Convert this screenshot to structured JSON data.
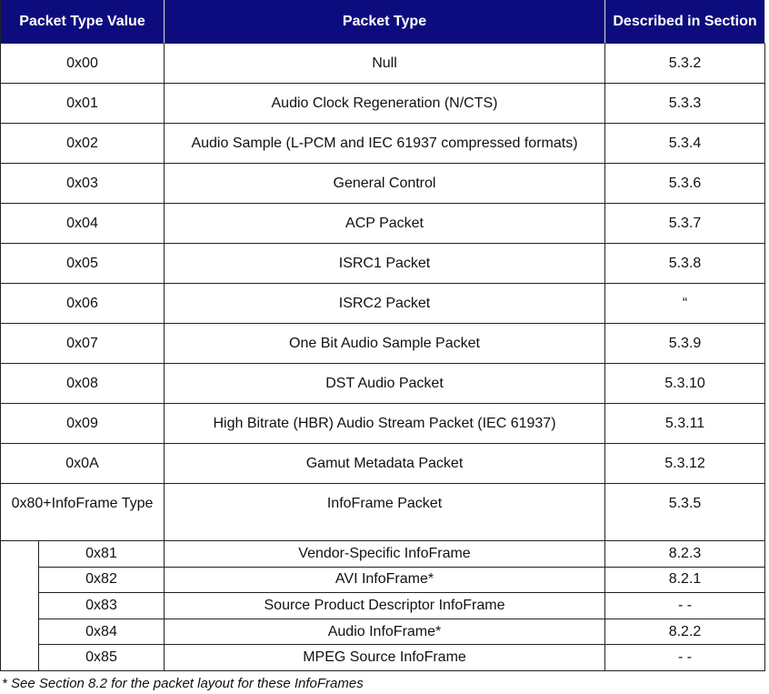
{
  "header": [
    "Packet Type Value",
    "Packet Type",
    "Described in Section"
  ],
  "rows": [
    [
      "0x00",
      "Null",
      "5.3.2"
    ],
    [
      "0x01",
      "Audio Clock Regeneration (N/CTS)",
      "5.3.3"
    ],
    [
      "0x02",
      "Audio Sample (L-PCM and IEC 61937 compressed formats)",
      "5.3.4"
    ],
    [
      "0x03",
      "General Control",
      "5.3.6"
    ],
    [
      "0x04",
      "ACP Packet",
      "5.3.7"
    ],
    [
      "0x05",
      "ISRC1 Packet",
      "5.3.8"
    ],
    [
      "0x06",
      "ISRC2 Packet",
      "“"
    ],
    [
      "0x07",
      "One Bit Audio Sample Packet",
      "5.3.9"
    ],
    [
      "0x08",
      "DST Audio Packet",
      "5.3.10"
    ],
    [
      "0x09",
      "High Bitrate (HBR) Audio Stream Packet (IEC 61937)",
      "5.3.11"
    ],
    [
      "0x0A",
      "Gamut Metadata Packet",
      "5.3.12"
    ]
  ],
  "group": {
    "row": [
      "0x80+InfoFrame Type",
      "InfoFrame Packet",
      "5.3.5"
    ],
    "subrows": [
      [
        "0x81",
        "Vendor-Specific InfoFrame",
        "8.2.3"
      ],
      [
        "0x82",
        "AVI InfoFrame*",
        "8.2.1"
      ],
      [
        "0x83",
        "Source Product Descriptor InfoFrame",
        "- -"
      ],
      [
        "0x84",
        "Audio InfoFrame*",
        "8.2.2"
      ],
      [
        "0x85",
        "MPEG Source InfoFrame",
        "- -"
      ]
    ]
  },
  "footnote": "* See Section 8.2 for the packet layout for these InfoFrames"
}
